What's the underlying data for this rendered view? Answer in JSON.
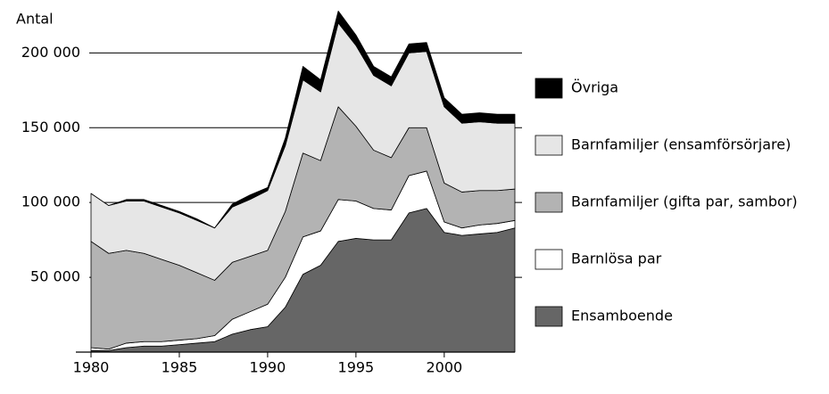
{
  "chart_data": {
    "type": "area",
    "stacked": true,
    "y_axis_label": "Antal",
    "x": [
      1980,
      1981,
      1982,
      1983,
      1984,
      1985,
      1986,
      1987,
      1988,
      1989,
      1990,
      1991,
      1992,
      1993,
      1994,
      1995,
      1996,
      1997,
      1998,
      1999,
      2000,
      2001,
      2002,
      2003,
      2004
    ],
    "series": [
      {
        "name": "Ensamboende",
        "color": "#666666",
        "values": [
          1000,
          1000,
          3000,
          4000,
          4000,
          5000,
          6000,
          7000,
          12000,
          15000,
          17000,
          30000,
          52000,
          58000,
          74000,
          76000,
          75000,
          75000,
          93000,
          96000,
          80000,
          78000,
          79000,
          80000,
          83000
        ]
      },
      {
        "name": "Barnlösa par",
        "color": "#ffffff",
        "values": [
          2000,
          1000,
          3000,
          3000,
          3000,
          3000,
          3000,
          4000,
          10000,
          12000,
          15000,
          20000,
          25000,
          23000,
          28000,
          25000,
          21000,
          20000,
          25000,
          25000,
          7000,
          5000,
          6000,
          6000,
          5000
        ]
      },
      {
        "name": "Barnfamiljer (gifta par, sambor)",
        "color": "#b3b3b3",
        "values": [
          71000,
          64000,
          62000,
          59000,
          55000,
          50000,
          44000,
          37000,
          38000,
          37000,
          36000,
          44000,
          56000,
          47000,
          62000,
          50000,
          39000,
          35000,
          32000,
          29000,
          26000,
          24000,
          23000,
          22000,
          21000
        ]
      },
      {
        "name": "Barnfamiljer (ensamförsörjare)",
        "color": "#e6e6e6",
        "values": [
          32000,
          32000,
          33000,
          35000,
          35000,
          35000,
          35000,
          35000,
          37000,
          38000,
          40000,
          44000,
          49000,
          46000,
          56000,
          54000,
          50000,
          48000,
          50000,
          51000,
          51000,
          46000,
          46000,
          45000,
          44000
        ]
      },
      {
        "name": "Övriga",
        "color": "#000000",
        "values": [
          0,
          0,
          1000,
          1000,
          1000,
          1000,
          1000,
          0,
          2000,
          3000,
          2000,
          5000,
          9000,
          8000,
          8000,
          7000,
          6000,
          6000,
          6000,
          6000,
          6000,
          6000,
          6000,
          6000,
          6000
        ]
      }
    ],
    "xlim": [
      1980,
      2004
    ],
    "xticks": [
      1980,
      1985,
      1990,
      1995,
      2000
    ],
    "ylim": [
      0,
      230000
    ],
    "yticks": [
      {
        "value": 50000,
        "label": "50 000"
      },
      {
        "value": 100000,
        "label": "100 000"
      },
      {
        "value": 150000,
        "label": "150 000"
      },
      {
        "value": 200000,
        "label": "200 000"
      }
    ],
    "grid": true,
    "legend": "right"
  }
}
